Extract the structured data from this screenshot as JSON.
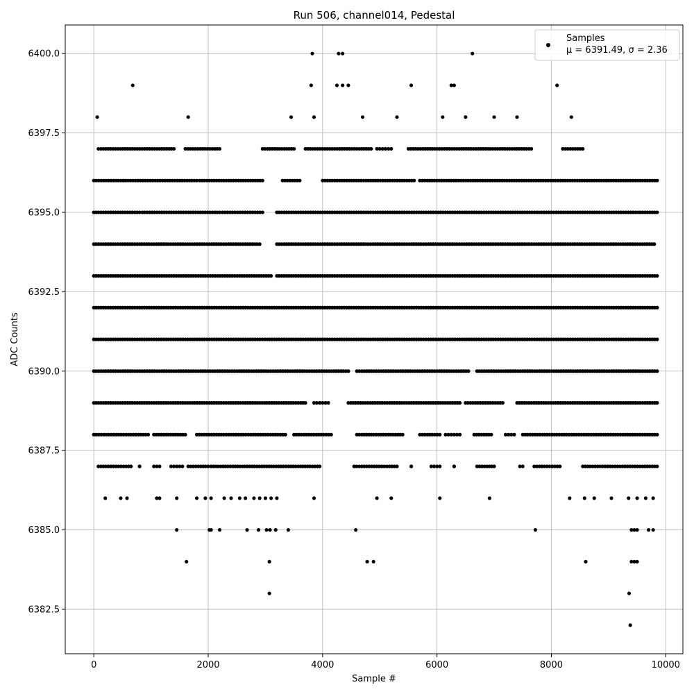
{
  "chart_data": {
    "type": "scatter",
    "title": "Run 506, channel014, Pedestal",
    "xlabel": "Sample #",
    "ylabel": "ADC Counts",
    "xlim": [
      -500,
      10300
    ],
    "ylim": [
      6381.1,
      6400.9
    ],
    "x_ticks": [
      0,
      2000,
      4000,
      6000,
      8000,
      10000
    ],
    "x_tick_labels": [
      "0",
      "2000",
      "4000",
      "6000",
      "8000",
      "10000"
    ],
    "y_ticks": [
      6382.5,
      6385.0,
      6387.5,
      6390.0,
      6392.5,
      6395.0,
      6397.5,
      6400.0
    ],
    "y_tick_labels": [
      "6382.5",
      "6385.0",
      "6387.5",
      "6390.0",
      "6392.5",
      "6395.0",
      "6397.5",
      "6400.0"
    ],
    "grid": true,
    "marker_color": "#000000",
    "legend": {
      "placement": "top-right",
      "series_label": "Samples",
      "stats_label": "μ = 6391.49, σ = 2.36"
    },
    "summary": {
      "mean": 6391.49,
      "sigma": 2.36,
      "x_min": 0,
      "x_max": 9850
    },
    "series": [
      {
        "name": "Samples",
        "points": [
          [
            60,
            6398
          ],
          [
            1650,
            6398
          ],
          [
            3450,
            6398
          ],
          [
            3850,
            6398
          ],
          [
            4700,
            6398
          ],
          [
            5300,
            6398
          ],
          [
            6100,
            6398
          ],
          [
            6500,
            6398
          ],
          [
            7000,
            6398
          ],
          [
            7400,
            6398
          ],
          [
            8350,
            6398
          ],
          [
            680,
            6399
          ],
          [
            3800,
            6399
          ],
          [
            4250,
            6399
          ],
          [
            4350,
            6399
          ],
          [
            4450,
            6399
          ],
          [
            5550,
            6399
          ],
          [
            6250,
            6399
          ],
          [
            6300,
            6399
          ],
          [
            8100,
            6399
          ],
          [
            3820,
            6400
          ],
          [
            4280,
            6400
          ],
          [
            4350,
            6400
          ],
          [
            6620,
            6400
          ],
          [
            1450,
            6385
          ],
          [
            2020,
            6385
          ],
          [
            2050,
            6385
          ],
          [
            2200,
            6385
          ],
          [
            2680,
            6385
          ],
          [
            2880,
            6385
          ],
          [
            3020,
            6385
          ],
          [
            3080,
            6385
          ],
          [
            3180,
            6385
          ],
          [
            3400,
            6385
          ],
          [
            4580,
            6385
          ],
          [
            7720,
            6385
          ],
          [
            9400,
            6385
          ],
          [
            9450,
            6385
          ],
          [
            9500,
            6385
          ],
          [
            9700,
            6385
          ],
          [
            9780,
            6385
          ],
          [
            1620,
            6384
          ],
          [
            3070,
            6384
          ],
          [
            4780,
            6384
          ],
          [
            4890,
            6384
          ],
          [
            8600,
            6384
          ],
          [
            9400,
            6384
          ],
          [
            9450,
            6384
          ],
          [
            9500,
            6384
          ],
          [
            3070,
            6383
          ],
          [
            9360,
            6383
          ],
          [
            9380,
            6382
          ],
          [
            200,
            6386
          ],
          [
            470,
            6386
          ],
          [
            580,
            6386
          ],
          [
            1100,
            6386
          ],
          [
            1150,
            6386
          ],
          [
            1450,
            6386
          ],
          [
            1800,
            6386
          ],
          [
            1950,
            6386
          ],
          [
            2050,
            6386
          ],
          [
            2280,
            6386
          ],
          [
            2400,
            6386
          ],
          [
            2550,
            6386
          ],
          [
            2650,
            6386
          ],
          [
            2800,
            6386
          ],
          [
            2900,
            6386
          ],
          [
            3000,
            6386
          ],
          [
            3100,
            6386
          ],
          [
            3200,
            6386
          ],
          [
            3850,
            6386
          ],
          [
            4950,
            6386
          ],
          [
            5200,
            6386
          ],
          [
            6050,
            6386
          ],
          [
            6920,
            6386
          ],
          [
            8320,
            6386
          ],
          [
            8580,
            6386
          ],
          [
            8750,
            6386
          ],
          [
            9050,
            6386
          ],
          [
            9350,
            6386
          ],
          [
            9500,
            6386
          ],
          [
            9650,
            6386
          ],
          [
            9780,
            6386
          ]
        ],
        "bands": [
          {
            "y": 6387,
            "segments": [
              [
                80,
                650
              ],
              [
                800,
                800
              ],
              [
                1050,
                1150
              ],
              [
                1350,
                1550
              ],
              [
                1650,
                2000
              ],
              [
                2050,
                3950
              ],
              [
                4550,
                5300
              ],
              [
                5550,
                5550
              ],
              [
                5900,
                6050
              ],
              [
                6300,
                6300
              ],
              [
                6700,
                7000
              ],
              [
                7450,
                7500
              ],
              [
                7700,
                8150
              ],
              [
                8550,
                9850
              ]
            ]
          },
          {
            "y": 6388,
            "segments": [
              [
                0,
                950
              ],
              [
                1050,
                1600
              ],
              [
                1800,
                3350
              ],
              [
                3500,
                4150
              ],
              [
                4600,
                5400
              ],
              [
                5700,
                6050
              ],
              [
                6150,
                6400
              ],
              [
                6650,
                6950
              ],
              [
                7200,
                7350
              ],
              [
                7500,
                9850
              ]
            ]
          },
          {
            "y": 6389,
            "segments": [
              [
                0,
                3700
              ],
              [
                3850,
                4100
              ],
              [
                4450,
                6400
              ],
              [
                6500,
                7150
              ],
              [
                7400,
                9850
              ]
            ]
          },
          {
            "y": 6390,
            "segments": [
              [
                0,
                4450
              ],
              [
                4600,
                6550
              ],
              [
                6700,
                9850
              ]
            ]
          },
          {
            "y": 6391,
            "segments": [
              [
                0,
                9850
              ]
            ]
          },
          {
            "y": 6392,
            "segments": [
              [
                0,
                9850
              ]
            ]
          },
          {
            "y": 6393,
            "segments": [
              [
                0,
                3100
              ],
              [
                3200,
                9850
              ]
            ]
          },
          {
            "y": 6394,
            "segments": [
              [
                0,
                2900
              ],
              [
                3200,
                9800
              ]
            ]
          },
          {
            "y": 6395,
            "segments": [
              [
                0,
                800
              ],
              [
                850,
                2200
              ],
              [
                2250,
                2950
              ],
              [
                3200,
                9850
              ]
            ]
          },
          {
            "y": 6396,
            "segments": [
              [
                0,
                1800
              ],
              [
                1850,
                2950
              ],
              [
                3300,
                3600
              ],
              [
                4000,
                5600
              ],
              [
                5700,
                9850
              ]
            ]
          },
          {
            "y": 6397,
            "segments": [
              [
                80,
                1400
              ],
              [
                1600,
                2200
              ],
              [
                2950,
                3500
              ],
              [
                3700,
                4850
              ],
              [
                4950,
                5200
              ],
              [
                5500,
                7650
              ],
              [
                8200,
                8550
              ]
            ]
          }
        ]
      }
    ]
  }
}
